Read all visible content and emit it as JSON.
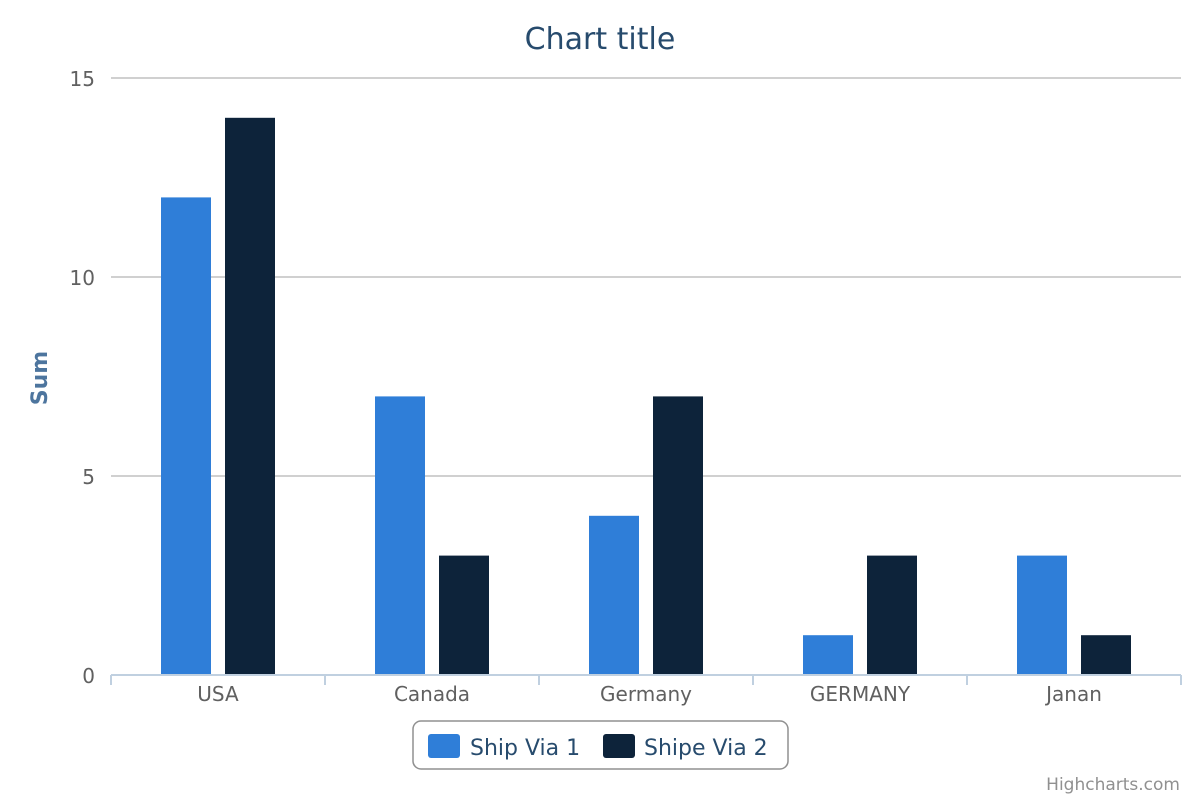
{
  "chart_data": {
    "type": "bar",
    "title": "Chart title",
    "ylabel": "Sum",
    "xlabel": "",
    "categories": [
      "USA",
      "Canada",
      "Germany",
      "GERMANY",
      "Janan"
    ],
    "series": [
      {
        "name": "Ship Via 1",
        "color": "#2f7ed8",
        "values": [
          12,
          7,
          4,
          1,
          3
        ]
      },
      {
        "name": "Shipe Via 2",
        "color": "#0d233a",
        "values": [
          14,
          3,
          7,
          3,
          1
        ]
      }
    ],
    "ylim": [
      0,
      15
    ],
    "yticks": [
      0,
      5,
      10,
      15
    ],
    "grid": true,
    "legend_position": "bottom-center"
  },
  "credits": "Highcharts.com"
}
